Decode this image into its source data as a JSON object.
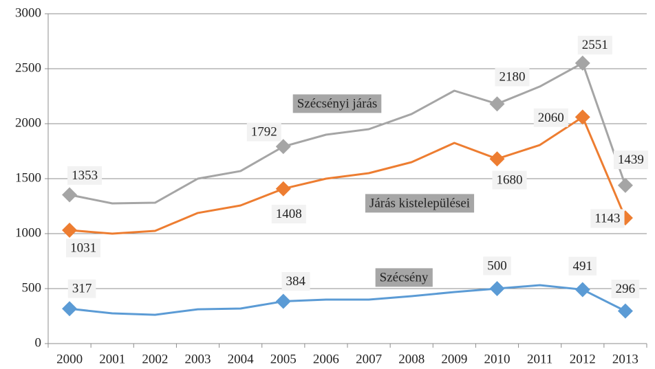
{
  "chart_data": {
    "type": "line",
    "categories": [
      "2000",
      "2001",
      "2002",
      "2003",
      "2004",
      "2005",
      "2006",
      "2007",
      "2008",
      "2009",
      "2010",
      "2011",
      "2012",
      "2013"
    ],
    "series": [
      {
        "name": "Szécsényi járás",
        "color": "#a5a5a5",
        "values": [
          1353,
          1275,
          1281,
          1500,
          1569,
          1792,
          1900,
          1950,
          2088,
          2300,
          2180,
          2338,
          2551,
          1439
        ]
      },
      {
        "name": "Járás kistelepülései",
        "color": "#ed7d31",
        "values": [
          1031,
          1000,
          1025,
          1188,
          1256,
          1408,
          1500,
          1550,
          1650,
          1825,
          1680,
          1806,
          2060,
          1143
        ]
      },
      {
        "name": "Szécsény",
        "color": "#5b9bd5",
        "values": [
          317,
          275,
          262,
          312,
          319,
          384,
          400,
          400,
          431,
          469,
          500,
          531,
          491,
          296
        ]
      }
    ],
    "markers_at": [
      0,
      5,
      10,
      12,
      13
    ],
    "ylim": [
      0,
      3000
    ],
    "yticks": [
      0,
      500,
      1000,
      1500,
      2000,
      2500,
      3000
    ],
    "grid": true
  }
}
